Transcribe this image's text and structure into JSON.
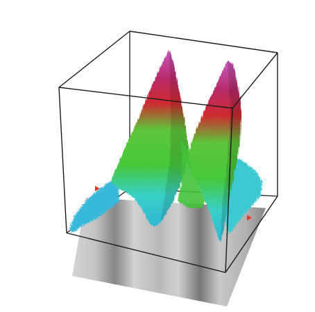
{
  "figure": {
    "description_hidden": "",
    "colors": {
      "background": "#ffffff",
      "frame_edge": "#1a1a1a",
      "floor_light": "#d9d9d9",
      "floor_dark": "#7a7a7a",
      "surface_low": "#38c4dc",
      "surface_mid": "#3ec23a",
      "surface_high_red": "#c8262e",
      "surface_peak": "#c24aa8",
      "marker": "#e0402a"
    }
  }
}
